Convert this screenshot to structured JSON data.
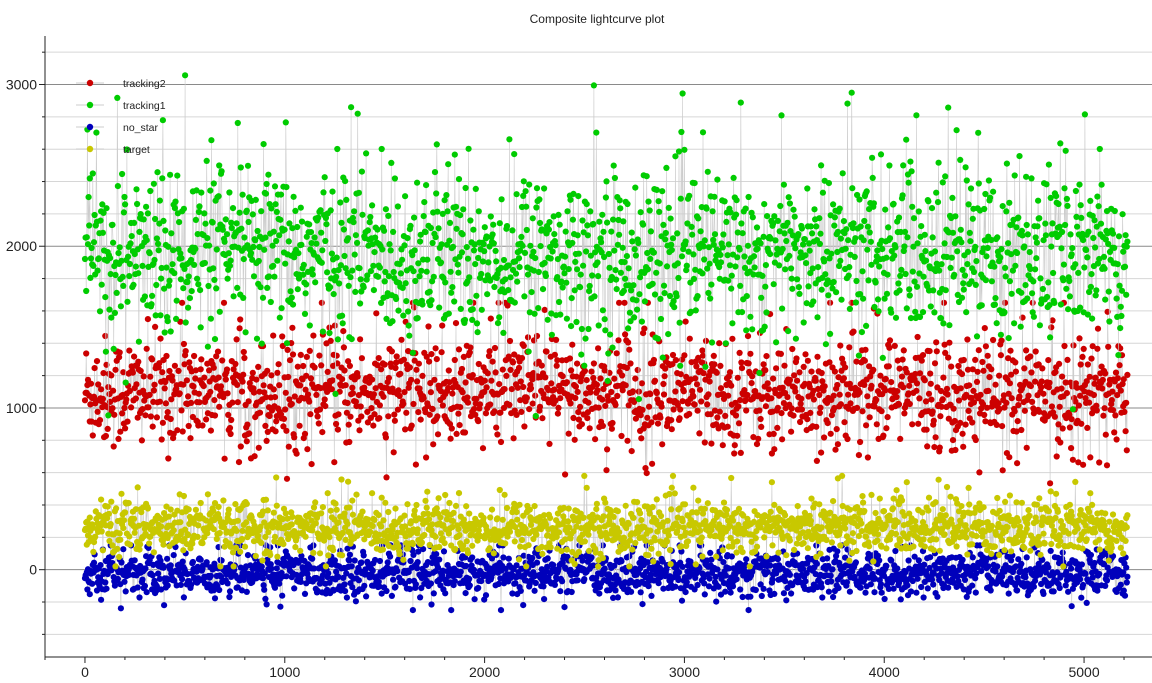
{
  "chart_data": {
    "type": "scatter",
    "title": "Composite lightcurve plot",
    "xlabel": "",
    "ylabel": "",
    "xlim": [
      -200,
      5340
    ],
    "ylim": [
      -540,
      3300
    ],
    "x_ticks": [
      0,
      1000,
      2000,
      3000,
      4000,
      5000
    ],
    "y_ticks": [
      0,
      1000,
      2000,
      3000
    ],
    "minor_step_x": 200,
    "minor_step_y": 200,
    "grid": true,
    "line_color": "#cccccc",
    "legend_position": "top-left",
    "n_points": 5220,
    "series": [
      {
        "name": "tracking2",
        "color": "#cc0000",
        "center": 1100,
        "spread": 170,
        "min": 520,
        "max": 1650
      },
      {
        "name": "tracking1",
        "color": "#00cc00",
        "center": 1950,
        "spread": 260,
        "min": 950,
        "max": 3170
      },
      {
        "name": "no_star",
        "color": "#0000bb",
        "center": -20,
        "spread": 70,
        "min": -250,
        "max": 150
      },
      {
        "name": "target",
        "color": "#c8c800",
        "center": 260,
        "spread": 85,
        "min": 20,
        "max": 580
      }
    ]
  }
}
